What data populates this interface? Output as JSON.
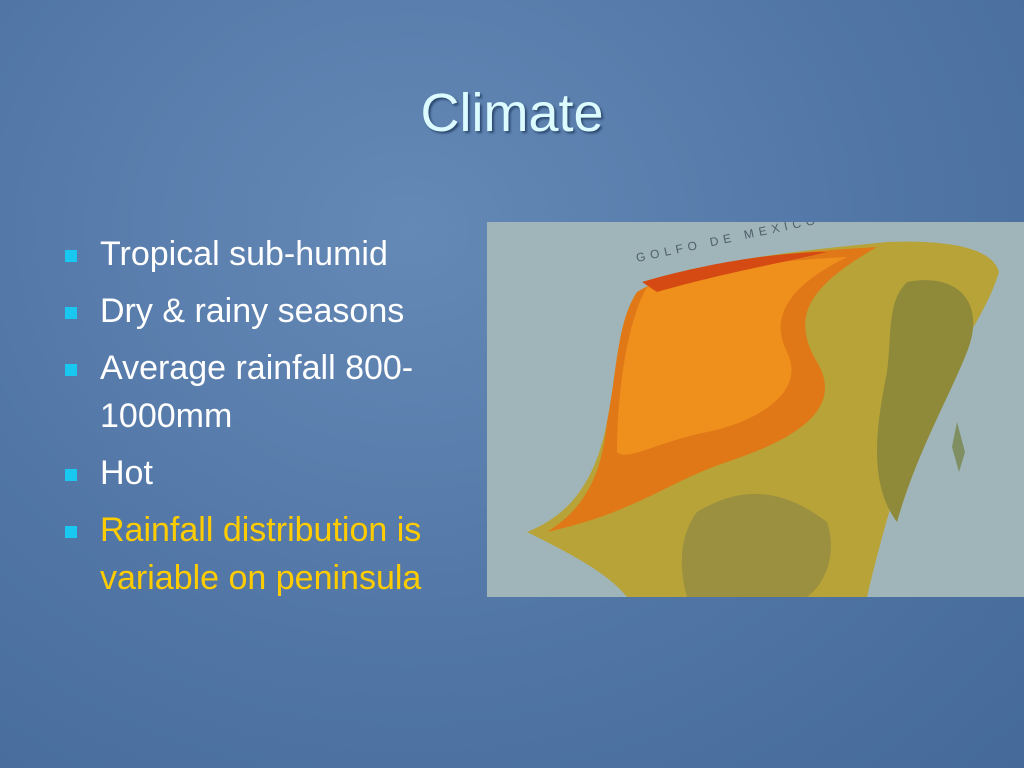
{
  "slide": {
    "title": "Climate",
    "bullets": [
      {
        "lines": [
          "Tropical sub-humid"
        ]
      },
      {
        "lines": [
          "Dry & rainy seasons"
        ]
      },
      {
        "lines": [
          "Average rainfall 800-",
          "1000mm"
        ]
      },
      {
        "lines": [
          "Hot"
        ]
      },
      {
        "lines": [
          "Rainfall distribution is",
          "variable on peninsula"
        ],
        "highlight": true
      }
    ],
    "map": {
      "label": "GOLFO DE MEXICO"
    }
  }
}
